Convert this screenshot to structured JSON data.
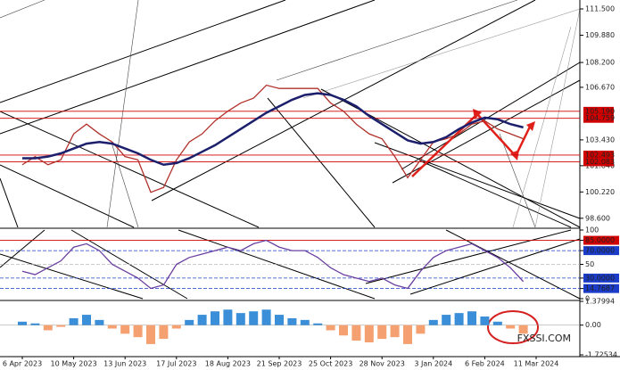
{
  "chart_data": [
    {
      "type": "line",
      "categories": [
        "6 Apr 2023",
        null,
        null,
        null,
        "10 May 2023",
        null,
        null,
        null,
        "13 Jun 2023",
        null,
        null,
        null,
        "17 Jul 2023",
        null,
        null,
        null,
        "18 Aug 2023",
        null,
        null,
        null,
        "21 Sep 2023",
        null,
        null,
        null,
        "25 Oct 2023",
        null,
        null,
        null,
        "28 Nov 2023",
        null,
        null,
        null,
        "3 Jan 2024",
        null,
        null,
        null,
        "6 Feb 2024",
        null,
        null,
        null,
        "11 Mar 2024"
      ],
      "series": [
        {
          "color": "#b0302a",
          "values": [
            101.9,
            102.4,
            101.9,
            102.2,
            103.8,
            104.4,
            103.8,
            103.3,
            102.4,
            102.2,
            100.2,
            100.5,
            102.2,
            103.3,
            103.8,
            104.6,
            105.2,
            105.7,
            106.0,
            106.8,
            106.6,
            106.6,
            106.6,
            106.6,
            105.7,
            105.2,
            104.4,
            103.8,
            103.5,
            102.4,
            101.1,
            102.2,
            103.3,
            103.5,
            103.8,
            104.4,
            104.6,
            104.1,
            103.8,
            103.5,
            null
          ]
        },
        {
          "color": "#1c1f6b",
          "values": [
            102.3,
            102.3,
            102.4,
            102.6,
            102.9,
            103.2,
            103.3,
            103.2,
            102.9,
            102.6,
            102.2,
            101.9,
            102.0,
            102.3,
            102.7,
            103.1,
            103.6,
            104.1,
            104.6,
            105.1,
            105.5,
            105.9,
            106.2,
            106.3,
            106.2,
            105.9,
            105.5,
            104.9,
            104.4,
            103.9,
            103.4,
            103.2,
            103.3,
            103.6,
            104.1,
            104.5,
            104.8,
            104.7,
            104.4,
            104.2,
            null
          ]
        }
      ],
      "ylim": [
        98.04,
        112.05
      ],
      "yticks": [
        {
          "value": 111.5,
          "label": "111.500"
        },
        {
          "value": 109.88,
          "label": "109.880"
        },
        {
          "value": 108.2,
          "label": "108.200"
        },
        {
          "value": 106.67,
          "label": "106.670"
        },
        {
          "value": 103.43,
          "label": "103.430"
        },
        {
          "value": 101.84,
          "label": "101.840"
        },
        {
          "value": 100.22,
          "label": "100.220"
        },
        {
          "value": 98.6,
          "label": "98.600"
        }
      ],
      "levels": [
        {
          "value": 105.19,
          "label": "105.190"
        },
        {
          "value": 104.759,
          "label": "104.759"
        },
        {
          "value": 102.493,
          "label": "102.493"
        },
        {
          "value": 102.083,
          "label": "102.083"
        }
      ],
      "level_color": "#d00000"
    },
    {
      "type": "line",
      "series": [
        {
          "color": "#6a3fa0",
          "values": [
            40,
            35,
            45,
            55,
            75,
            80,
            70,
            50,
            40,
            30,
            15,
            20,
            50,
            60,
            65,
            70,
            75,
            70,
            80,
            85,
            75,
            70,
            70,
            60,
            45,
            35,
            30,
            25,
            30,
            20,
            15,
            40,
            60,
            70,
            75,
            80,
            70,
            60,
            45,
            25,
            null
          ]
        }
      ],
      "ylim": [
        0,
        100
      ],
      "yticks": [
        100,
        {
          "value": 85,
          "label": "85.0000"
        },
        {
          "value": 70,
          "label": "70.0000"
        },
        50,
        {
          "value": 30,
          "label": "30.0000"
        },
        14.7687,
        0
      ]
    },
    {
      "type": "bar",
      "series": [
        {
          "color": "#3a8fd8",
          "negative_color": "#f4a070",
          "values": [
            0.2,
            0.1,
            -0.3,
            -0.1,
            0.4,
            0.6,
            0.3,
            -0.2,
            -0.5,
            -0.7,
            -1.1,
            -0.8,
            -0.2,
            0.3,
            0.6,
            0.8,
            0.9,
            0.7,
            0.8,
            0.9,
            0.6,
            0.4,
            0.3,
            0.1,
            -0.3,
            -0.6,
            -0.9,
            -1.0,
            -0.8,
            -0.7,
            -1.1,
            -0.5,
            0.3,
            0.6,
            0.7,
            0.8,
            0.5,
            0.2,
            -0.2,
            -0.5,
            null
          ]
        }
      ],
      "ylim": [
        -1.72534,
        1.37994
      ],
      "yticks": [
        1.37994,
        {
          "value": 0,
          "label": "0.00"
        },
        -1.72534
      ],
      "watermark": "FXSSI.COM"
    }
  ]
}
